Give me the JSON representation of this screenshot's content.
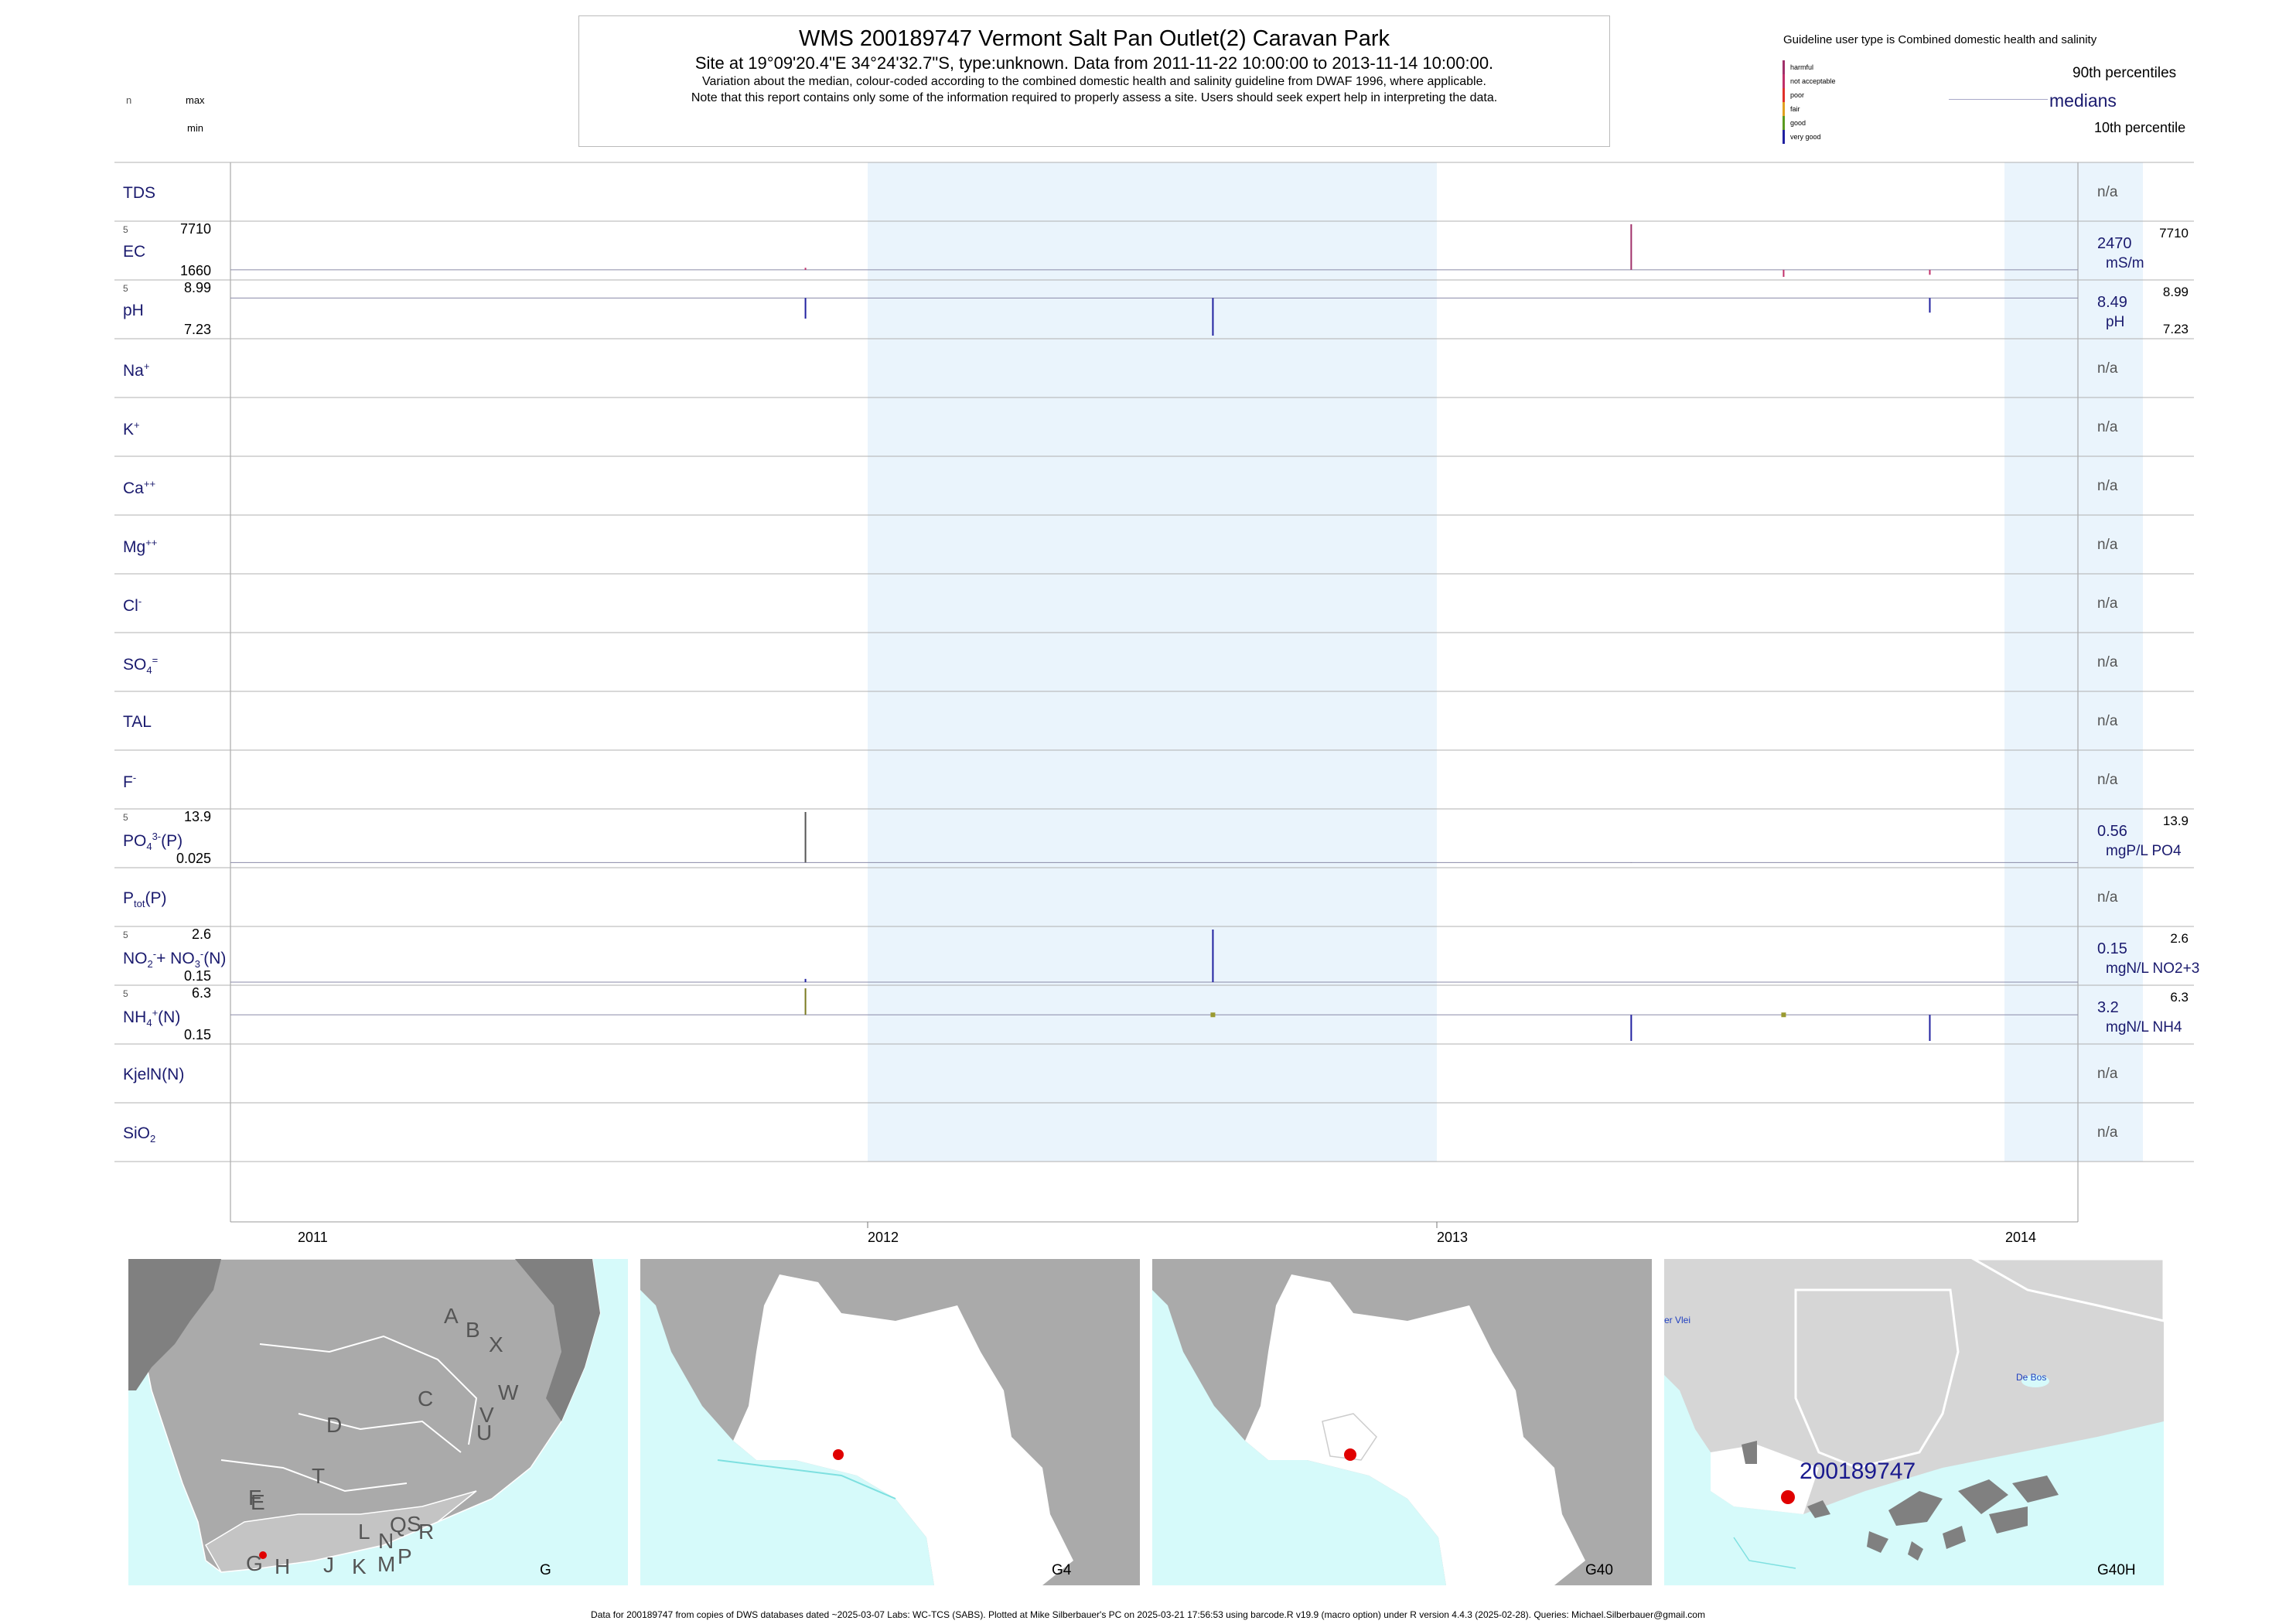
{
  "header": {
    "title": "WMS 200189747  Vermont Salt Pan Outlet(2) Caravan Park",
    "subtitle": "Site at 19°09'20.4\"E 34°24'32.7\"S, type:unknown.  Data from 2011-11-22 10:00:00 to 2013-11-14 10:00:00.",
    "note1": "Variation about the median,  colour-coded according to the combined domestic health and salinity guideline from DWAF 1996, where applicable.",
    "note2": "Note that this report contains only some of the information required to properly assess a site. Users should seek expert help in interpreting the data.",
    "n_label": "n",
    "max_label": "max",
    "min_label": "min"
  },
  "legend": {
    "title": "Guideline user type is Combined domestic health and salinity",
    "items": [
      {
        "label": "harmful",
        "color": "#a0306a"
      },
      {
        "label": "not acceptable",
        "color": "#c0306a"
      },
      {
        "label": "poor",
        "color": "#e0302a"
      },
      {
        "label": "fair",
        "color": "#e0a020"
      },
      {
        "label": "good",
        "color": "#5a9a20"
      },
      {
        "label": "very good",
        "color": "#2020a0"
      }
    ],
    "p90": "90th percentiles",
    "medians": "medians",
    "p10": "10th percentile"
  },
  "chart_data": {
    "type": "bar",
    "x_axis": {
      "labels": [
        "2011",
        "2012",
        "2013",
        "2014"
      ]
    },
    "shaded_periods": [
      [
        "2012-01-01",
        "2013-01-01"
      ],
      [
        "2014-01-01",
        "2014-03-31"
      ]
    ],
    "rows": [
      {
        "key": "TDS",
        "label": "TDS",
        "status": "n/a"
      },
      {
        "key": "EC",
        "label": "EC",
        "n": "5",
        "max": "7710",
        "min": "1660",
        "median": "2470",
        "unit": "mS/m",
        "right_max": "7710",
        "samples": [
          {
            "date": "2011-11-22",
            "value": 2700,
            "color": "#c0306a"
          },
          {
            "date": "2012-08-10",
            "value": 2470,
            "color": "#555555"
          },
          {
            "date": "2013-05-06",
            "value": 7710,
            "color": "#a0306a"
          },
          {
            "date": "2013-08-12",
            "value": 1660,
            "color": "#c0306a"
          },
          {
            "date": "2013-11-14",
            "value": 1900,
            "color": "#c0306a"
          }
        ]
      },
      {
        "key": "pH",
        "label": "pH",
        "n": "5",
        "max": "8.99",
        "min": "7.23",
        "median": "8.49",
        "unit": "pH",
        "right_max": "8.99",
        "right_min": "7.23",
        "samples": [
          {
            "date": "2011-11-22",
            "value": 7.8,
            "color": "#2020a0"
          },
          {
            "date": "2012-08-10",
            "value": 7.23,
            "color": "#2020a0"
          },
          {
            "date": "2013-05-06",
            "value": 8.49,
            "color": "#2020a0"
          },
          {
            "date": "2013-08-12",
            "value": 8.49,
            "color": "#2020a0"
          },
          {
            "date": "2013-11-14",
            "value": 8.0,
            "color": "#2020a0"
          }
        ]
      },
      {
        "key": "Na",
        "label": "Na",
        "sup": "+",
        "status": "n/a"
      },
      {
        "key": "K",
        "label": "K",
        "sup": "+",
        "status": "n/a"
      },
      {
        "key": "Ca",
        "label": "Ca",
        "sup": "++",
        "status": "n/a"
      },
      {
        "key": "Mg",
        "label": "Mg",
        "sup": "++",
        "status": "n/a"
      },
      {
        "key": "Cl",
        "label": "Cl",
        "sup": "-",
        "status": "n/a"
      },
      {
        "key": "SO4",
        "label": "SO",
        "sub": "4",
        "sup": "=",
        "status": "n/a"
      },
      {
        "key": "TAL",
        "label": "TAL",
        "status": "n/a"
      },
      {
        "key": "F",
        "label": "F",
        "sup": "-",
        "status": "n/a"
      },
      {
        "key": "PO4",
        "label": "PO",
        "sub": "4",
        "sup": "3-",
        "suffix": "(P)",
        "n": "5",
        "max": "13.9",
        "min": "0.025",
        "median": "0.56",
        "unit": "mgP/L PO4",
        "right_max": "13.9",
        "samples": [
          {
            "date": "2011-11-22",
            "value": 13.9,
            "color": "#555555"
          },
          {
            "date": "2013-05-06",
            "value": 0.6,
            "color": "#555555"
          },
          {
            "date": "2013-08-12",
            "value": 0.56,
            "color": "#555555"
          }
        ]
      },
      {
        "key": "Ptot",
        "label": "P",
        "sub": "tot",
        "suffix": "(P)",
        "status": "n/a"
      },
      {
        "key": "NOx",
        "label": "NO",
        "sub": "2",
        "sup": "-",
        "mid": "+ NO",
        "sub2": "3",
        "sup2": "-",
        "suffix": "(N)",
        "n": "5",
        "max": "2.6",
        "min": "0.15",
        "median": "0.15",
        "unit": "mgN/L NO2+3",
        "right_max": "2.6",
        "samples": [
          {
            "date": "2011-11-22",
            "value": 0.3,
            "color": "#2020a0"
          },
          {
            "date": "2012-08-10",
            "value": 2.6,
            "color": "#2020a0"
          }
        ]
      },
      {
        "key": "NH4",
        "label": "NH",
        "sub": "4",
        "sup": "+",
        "suffix": "(N)",
        "n": "5",
        "max": "6.3",
        "min": "0.15",
        "median": "3.2",
        "unit": "mgN/L NH4",
        "right_max": "6.3",
        "samples": [
          {
            "date": "2011-11-22",
            "value": 6.3,
            "color": "#7a7a20"
          },
          {
            "date": "2012-08-10",
            "value": 3.2,
            "color": "#9a9a30",
            "point": true
          },
          {
            "date": "2013-05-06",
            "value": 0.15,
            "color": "#2020a0"
          },
          {
            "date": "2013-08-12",
            "value": 3.2,
            "color": "#9a9a30",
            "point": true
          },
          {
            "date": "2013-11-14",
            "value": 0.15,
            "color": "#2020a0"
          }
        ]
      },
      {
        "key": "KjelN",
        "label": "KjelN(N)",
        "status": "n/a"
      },
      {
        "key": "SiO2",
        "label": "SiO",
        "sub": "2",
        "status": "n/a"
      }
    ]
  },
  "maps": [
    {
      "label": "G",
      "letters": [
        "A",
        "B",
        "X",
        "W",
        "C",
        "V",
        "U",
        "D",
        "T",
        "F",
        "E",
        "S",
        "R",
        "Q",
        "N",
        "L",
        "P",
        "M",
        "K",
        "J",
        "H",
        "G"
      ]
    },
    {
      "label": "G4"
    },
    {
      "label": "G40"
    },
    {
      "label": "G40H",
      "site_label": "200189747",
      "place1": "De Bos",
      "place2": "er Vlei"
    }
  ],
  "colors": {
    "shade": "#eaf4fc",
    "sea": "#d6fafa",
    "land_dark": "#808080",
    "land_mid": "#aaaaaa",
    "land_light": "#d6d6d6",
    "site": "#e00000",
    "text_blue": "#1a1a6e"
  },
  "footer": "Data for 200189747 from copies of DWS databases dated ~2025-03-07 Labs: WC-TCS (SABS). Plotted at Mike Silberbauer's PC on 2025-03-21 17:56:53 using barcode.R v19.9 (macro option) under R version 4.4.3 (2025-02-28). Queries: Michael.Silberbauer@gmail.com"
}
